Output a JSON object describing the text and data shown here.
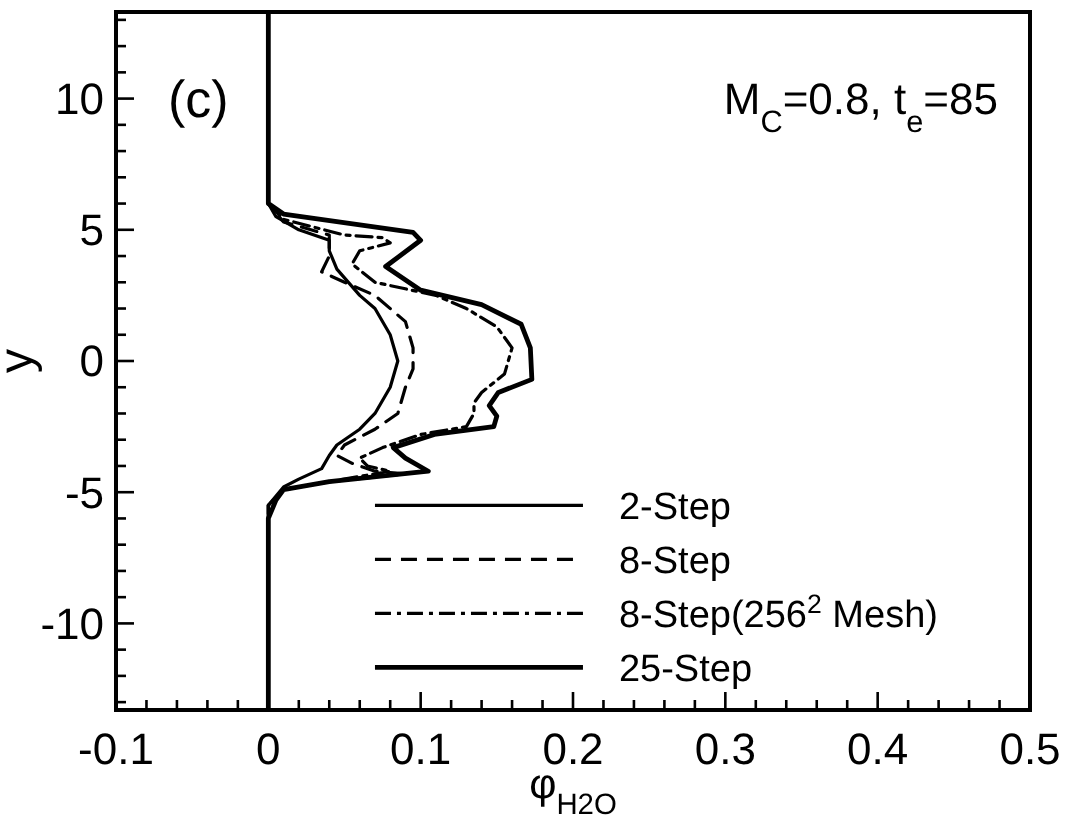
{
  "chart_data": {
    "type": "line",
    "xlabel": "φ$_{H2O}$",
    "ylabel": "y",
    "annotations": [
      "(c)",
      "M$_{C}$=0.8, t$_{e}$=85"
    ],
    "xlim": [
      -0.1,
      0.5
    ],
    "ylim": [
      -13.3,
      13.3
    ],
    "xticks": [
      -0.1,
      {
        "value": -0.08,
        "label": null
      },
      {
        "value": -0.06,
        "label": null
      },
      {
        "value": -0.04,
        "label": null
      },
      {
        "value": -0.02,
        "label": null
      },
      0,
      {
        "value": 0.02,
        "label": null
      },
      {
        "value": 0.04,
        "label": null
      },
      {
        "value": 0.06,
        "label": null
      },
      {
        "value": 0.08,
        "label": null
      },
      0.1,
      {
        "value": 0.12,
        "label": null
      },
      {
        "value": 0.14,
        "label": null
      },
      {
        "value": 0.16,
        "label": null
      },
      {
        "value": 0.18,
        "label": null
      },
      0.2,
      {
        "value": 0.22,
        "label": null
      },
      {
        "value": 0.24,
        "label": null
      },
      {
        "value": 0.26,
        "label": null
      },
      {
        "value": 0.28,
        "label": null
      },
      0.3,
      {
        "value": 0.32,
        "label": null
      },
      {
        "value": 0.34,
        "label": null
      },
      {
        "value": 0.36,
        "label": null
      },
      {
        "value": 0.38,
        "label": null
      },
      0.4,
      {
        "value": 0.42,
        "label": null
      },
      {
        "value": 0.44,
        "label": null
      },
      {
        "value": 0.46,
        "label": null
      },
      {
        "value": 0.48,
        "label": null
      },
      0.5
    ],
    "yticks": [
      {
        "value": -13,
        "label": null
      },
      {
        "value": -12,
        "label": null
      },
      {
        "value": -11,
        "label": null
      },
      -10,
      {
        "value": -9,
        "label": null
      },
      {
        "value": -8,
        "label": null
      },
      {
        "value": -7,
        "label": null
      },
      {
        "value": -6,
        "label": null
      },
      -5,
      {
        "value": -4,
        "label": null
      },
      {
        "value": -3,
        "label": null
      },
      {
        "value": -2,
        "label": null
      },
      {
        "value": -1,
        "label": null
      },
      0,
      {
        "value": 1,
        "label": null
      },
      {
        "value": 2,
        "label": null
      },
      {
        "value": 3,
        "label": null
      },
      {
        "value": 4,
        "label": null
      },
      5,
      {
        "value": 6,
        "label": null
      },
      {
        "value": 7,
        "label": null
      },
      {
        "value": 8,
        "label": null
      },
      {
        "value": 9,
        "label": null
      },
      10,
      {
        "value": 11,
        "label": null
      },
      {
        "value": 12,
        "label": null
      },
      {
        "value": 13,
        "label": null
      }
    ],
    "grid": false,
    "legend": "bottom right",
    "series": [
      {
        "name": "2-Step",
        "color": "#000000",
        "line_style": "solid",
        "x": [
          0,
          0,
          0.005,
          0.02,
          0.04,
          0.04,
          0.045,
          0.06,
          0.07,
          0.08,
          0.085,
          0.08,
          0.07,
          0.06,
          0.045,
          0.04,
          0.035,
          0.02,
          0.01,
          0,
          0
        ],
        "values": [
          13.3,
          6,
          5.5,
          5.0,
          4.6,
          4.2,
          3.5,
          2.5,
          2.0,
          1.0,
          0,
          -1.0,
          -2.0,
          -2.6,
          -3.2,
          -3.6,
          -4.1,
          -4.5,
          -4.8,
          -5.5,
          -13.3
        ]
      },
      {
        "name": "8-Step",
        "color": "#000000",
        "line_style": "dashed",
        "x": [
          0,
          0,
          0.01,
          0.04,
          0.04,
          0.035,
          0.05,
          0.07,
          0.09,
          0.095,
          0.095,
          0.09,
          0.085,
          0.07,
          0.05,
          0.045,
          0.055,
          0.07,
          0.09,
          0.04,
          0.01,
          0,
          0
        ],
        "values": [
          13.3,
          6,
          5.3,
          4.8,
          4.0,
          3.4,
          3.0,
          2.5,
          1.5,
          0.5,
          -0.3,
          -1.0,
          -2.0,
          -2.6,
          -3.2,
          -3.6,
          -3.9,
          -4.2,
          -4.3,
          -4.6,
          -4.9,
          -5.5,
          -13.3
        ]
      },
      {
        "name": "8-Step(256$^{2}$ Mesh)",
        "color": "#000000",
        "line_style": "dashdot",
        "x": [
          0,
          0,
          0.01,
          0.05,
          0.075,
          0.08,
          0.06,
          0.055,
          0.07,
          0.11,
          0.13,
          0.15,
          0.16,
          0.155,
          0.14,
          0.135,
          0.135,
          0.13,
          0.1,
          0.075,
          0.06,
          0.065,
          0.08,
          0.04,
          0.01,
          0,
          0
        ],
        "values": [
          13.3,
          6,
          5.4,
          4.8,
          4.7,
          4.5,
          4.2,
          3.7,
          3.0,
          2.5,
          2.0,
          1.3,
          0.5,
          -0.5,
          -1.2,
          -1.6,
          -2.0,
          -2.5,
          -2.8,
          -3.3,
          -3.7,
          -4.0,
          -4.2,
          -4.6,
          -4.9,
          -5.5,
          -13.3
        ]
      },
      {
        "name": "25-Step",
        "color": "#000000",
        "line_style": "solid",
        "x": [
          0,
          0,
          0.01,
          0.095,
          0.1,
          0.077,
          0.1,
          0.14,
          0.166,
          0.172,
          0.173,
          0.151,
          0.145,
          0.15,
          0.148,
          0.109,
          0.082,
          0.09,
          0.105,
          0.04,
          0.01,
          0.005,
          0,
          0
        ],
        "values": [
          13.3,
          6,
          5.6,
          4.9,
          4.6,
          3.6,
          2.7,
          2.15,
          1.4,
          0.5,
          -0.7,
          -1.2,
          -1.7,
          -2.1,
          -2.5,
          -2.8,
          -3.3,
          -3.7,
          -4.2,
          -4.6,
          -4.9,
          -5.3,
          -6,
          -13.3
        ]
      }
    ]
  }
}
